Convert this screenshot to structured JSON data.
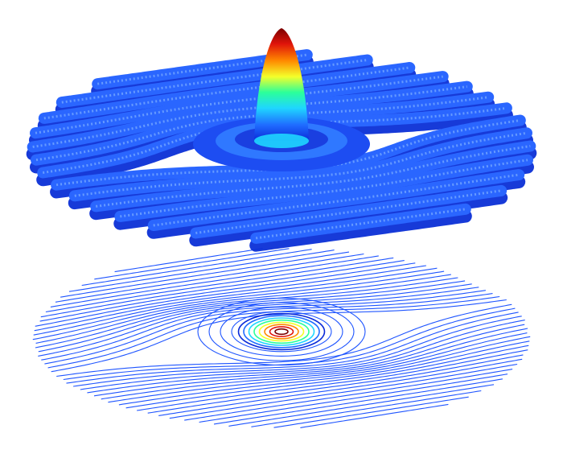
{
  "chart_data": {
    "type": "surface-contour",
    "title": "",
    "xlabel": "",
    "ylabel": "",
    "zlabel": "",
    "grid": false,
    "legend": "none",
    "colormap": [
      "#0a2ad8",
      "#1f6bff",
      "#1fd6ff",
      "#2bff9a",
      "#f4ff2a",
      "#ff8a00",
      "#e0140a",
      "#7a0000"
    ],
    "base_color": "#1f55ff",
    "background": "#ffffff",
    "surface": {
      "peak": {
        "x": 0,
        "y": 0,
        "z": 1.0
      },
      "ring_level": 0.12,
      "ripple_amplitude": 0.08,
      "ripple_count": 14
    },
    "contours": {
      "center": {
        "x": 0,
        "y": 0
      },
      "inner_ring_count": 8,
      "outer_line_count": 44
    }
  }
}
